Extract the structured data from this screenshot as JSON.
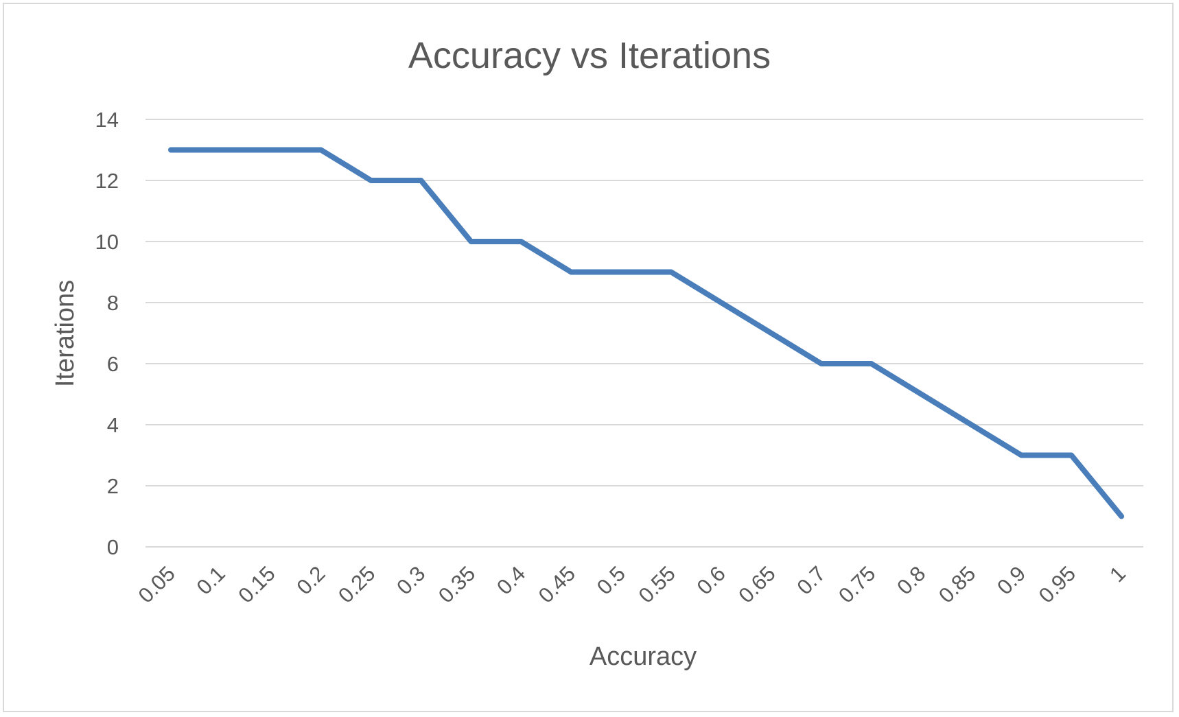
{
  "chart_data": {
    "type": "line",
    "title": "Accuracy vs Iterations",
    "xlabel": "Accuracy",
    "ylabel": "Iterations",
    "categories": [
      "0.05",
      "0.1",
      "0.15",
      "0.2",
      "0.25",
      "0.3",
      "0.35",
      "0.4",
      "0.45",
      "0.5",
      "0.55",
      "0.6",
      "0.65",
      "0.7",
      "0.75",
      "0.8",
      "0.85",
      "0.9",
      "0.95",
      "1"
    ],
    "series": [
      {
        "values": [
          13,
          13,
          13,
          13,
          12,
          12,
          10,
          10,
          9,
          9,
          9,
          8,
          7,
          6,
          6,
          5,
          4,
          3,
          3,
          1
        ],
        "color": "#4a7ebb"
      }
    ],
    "yticks": [
      "0",
      "2",
      "4",
      "6",
      "8",
      "10",
      "12",
      "14"
    ],
    "ylim": [
      0,
      14
    ],
    "grid": true,
    "legend": "none",
    "gridline_color": "#d9d9d9",
    "text_color": "#595959"
  }
}
